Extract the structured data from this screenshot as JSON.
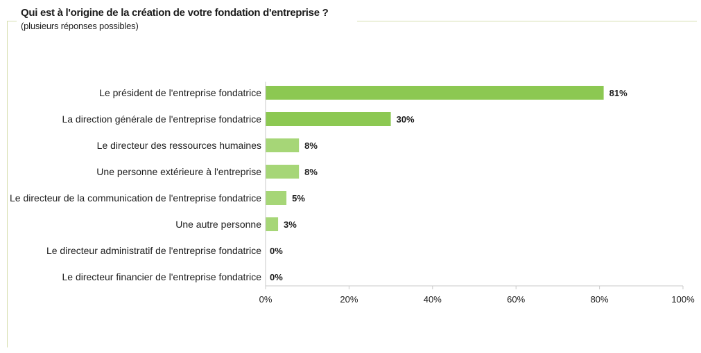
{
  "title": "Qui est à l'origine de la création de votre fondation d'entreprise ?",
  "subtitle": "(plusieurs réponses possibles)",
  "colors": {
    "bar": "#8cc852",
    "bar_light": "#a6d677",
    "frame": "#d7dfb0",
    "axis": "#c8c8c8"
  },
  "chart_data": {
    "type": "bar",
    "orientation": "horizontal",
    "categories": [
      "Le président de l'entreprise fondatrice",
      "La direction générale de l'entreprise fondatrice",
      "Le directeur des ressources humaines",
      "Une personne extérieure à l'entreprise",
      "Le directeur de la communication de l'entreprise fondatrice",
      "Une autre personne",
      "Le directeur administratif de l'entreprise fondatrice",
      "Le directeur financier de l'entreprise fondatrice"
    ],
    "values": [
      81,
      30,
      8,
      8,
      5,
      3,
      0,
      0
    ],
    "value_labels": [
      "81%",
      "30%",
      "8%",
      "8%",
      "5%",
      "3%",
      "0%",
      "0%"
    ],
    "xlim": [
      0,
      100
    ],
    "xticks": [
      0,
      20,
      40,
      60,
      80,
      100
    ],
    "xtick_labels": [
      "0%",
      "20%",
      "40%",
      "60%",
      "80%",
      "100%"
    ],
    "grid": false,
    "legend": "none"
  }
}
